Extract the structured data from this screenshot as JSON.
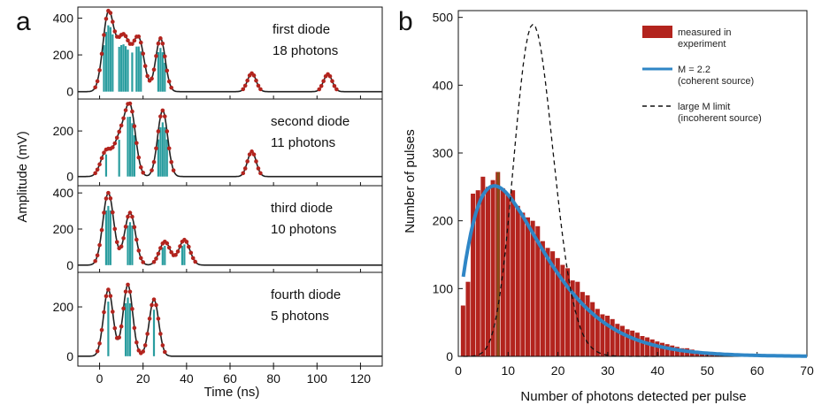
{
  "figure": {
    "panel_a_letter": "a",
    "panel_b_letter": "b"
  },
  "chart_data": [
    {
      "type": "line",
      "panel": "a",
      "xlabel": "Time (ns)",
      "ylabel": "Amplitude (mV)",
      "x_ticks": [
        "0",
        "20",
        "40",
        "60",
        "80",
        "100",
        "120"
      ],
      "xlim": [
        -10,
        130
      ],
      "colors": {
        "trace": "#222222",
        "points": "#b3241e",
        "photon_lines": "#2a9d9f"
      },
      "subplots": [
        {
          "label_line1": "first diode",
          "label_line2": "18 photons",
          "ylim": [
            -40,
            460
          ],
          "y_ticks": [
            "0",
            "200",
            "400"
          ],
          "peaks": [
            [
              4,
              420,
              2.5
            ],
            [
              11,
              300,
              3
            ],
            [
              18,
              280,
              2.5
            ],
            [
              28,
              290,
              2.2
            ],
            [
              70,
              100,
              2
            ],
            [
              105,
              95,
              2
            ]
          ],
          "photon_times": [
            2,
            3,
            4,
            5,
            6,
            9,
            10,
            11,
            12,
            13,
            15,
            17,
            18,
            19,
            27,
            28,
            29,
            30
          ]
        },
        {
          "label_line1": "second diode",
          "label_line2": "11 photons",
          "ylim": [
            -40,
            340
          ],
          "y_ticks": [
            "0",
            "200"
          ],
          "peaks": [
            [
              3,
              110,
              2.5
            ],
            [
              9,
              150,
              2.5
            ],
            [
              14,
              300,
              2.5
            ],
            [
              29,
              290,
              2.3
            ],
            [
              70,
              110,
              2
            ]
          ],
          "photon_times": [
            3,
            9,
            13,
            14,
            15,
            16,
            27,
            28,
            29,
            30,
            31
          ]
        },
        {
          "label_line1": "third diode",
          "label_line2": "10 photons",
          "ylim": [
            -40,
            440
          ],
          "y_ticks": [
            "0",
            "200",
            "400"
          ],
          "peaks": [
            [
              4,
              400,
              2.5
            ],
            [
              14,
              290,
              2.5
            ],
            [
              30,
              130,
              2.5
            ],
            [
              39,
              140,
              2.5
            ]
          ],
          "photon_times": [
            3,
            4,
            5,
            13,
            14,
            15,
            29,
            30,
            38,
            39
          ]
        },
        {
          "label_line1": "fourth diode",
          "label_line2": "5 photons",
          "ylim": [
            -40,
            340
          ],
          "y_ticks": [
            "0",
            "200"
          ],
          "peaks": [
            [
              4,
              270,
              2.2
            ],
            [
              13,
              290,
              2.2
            ],
            [
              25,
              230,
              2.2
            ]
          ],
          "photon_times": [
            4,
            12,
            13,
            14,
            25
          ]
        }
      ]
    },
    {
      "type": "bar",
      "panel": "b",
      "xlabel": "Number of photons detected per pulse",
      "ylabel": "Number of pulses",
      "xlim": [
        0,
        70
      ],
      "ylim": [
        0,
        510
      ],
      "x_ticks": [
        0,
        10,
        20,
        30,
        40,
        50,
        60,
        70
      ],
      "y_ticks": [
        0,
        100,
        200,
        300,
        400,
        500
      ],
      "bins_x": [
        1,
        2,
        3,
        4,
        5,
        6,
        7,
        8,
        9,
        10,
        11,
        12,
        13,
        14,
        15,
        16,
        17,
        18,
        19,
        20,
        21,
        22,
        23,
        24,
        25,
        26,
        27,
        28,
        29,
        30,
        31,
        32,
        33,
        34,
        35,
        36,
        37,
        38,
        39,
        40,
        41,
        42,
        43,
        44,
        45,
        46,
        47,
        48,
        49,
        50,
        51,
        52,
        53,
        54,
        55,
        56,
        57,
        58,
        59,
        60
      ],
      "counts": [
        75,
        110,
        240,
        245,
        265,
        250,
        260,
        272,
        248,
        240,
        245,
        222,
        212,
        205,
        200,
        192,
        170,
        160,
        155,
        145,
        135,
        130,
        112,
        110,
        95,
        90,
        80,
        70,
        62,
        60,
        55,
        48,
        45,
        40,
        38,
        35,
        30,
        28,
        25,
        22,
        20,
        18,
        16,
        14,
        12,
        12,
        10,
        8,
        7,
        6,
        5,
        4,
        4,
        3,
        3,
        2,
        2,
        1,
        1,
        1
      ],
      "legend": [
        {
          "label_line1": "measured in",
          "label_line2": "experiment",
          "style": "box",
          "color": "#b3241e"
        },
        {
          "label_line1": "M = 2.2",
          "label_line2": "(coherent source)",
          "style": "solid",
          "color": "#2f86c6"
        },
        {
          "label_line1": "large M limit",
          "label_line2": "(incoherent source)",
          "style": "dashed",
          "color": "#111111"
        }
      ],
      "fit_M": 2.2,
      "fit_mean": 14.2,
      "poisson_mean": 15.5,
      "poisson_peak": 490,
      "bar_color": "#b3241e",
      "bar_tint_color": "#6b6a12",
      "fit_color": "#2f86c6"
    }
  ]
}
